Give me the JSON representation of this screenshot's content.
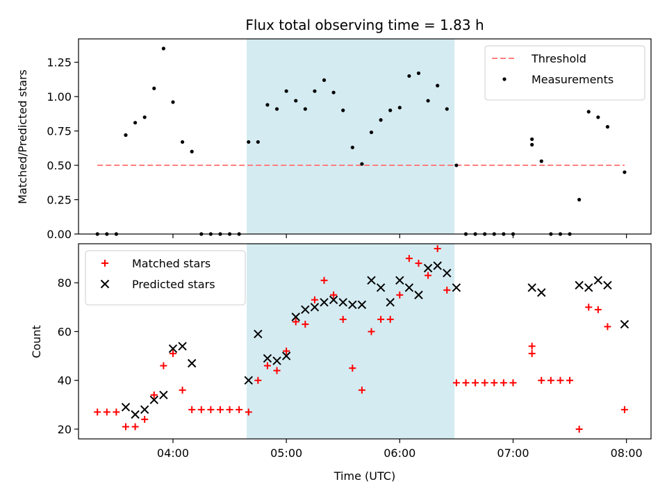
{
  "chart_data": {
    "type": "scatter",
    "title": "Flux total observing time = 1.83 h",
    "xlabel": "Time (UTC)",
    "x_unit": "hours UTC",
    "xlim": [
      "03:10",
      "08:13"
    ],
    "x_ticks": [
      "04:00",
      "05:00",
      "06:00",
      "07:00",
      "08:00"
    ],
    "shaded_interval": [
      "04:39",
      "06:29"
    ],
    "shade_color": "#d4ebf1",
    "panels": [
      {
        "ylabel": "Matched/Predicted stars",
        "ylim": [
          0,
          1.42
        ],
        "y_ticks": [
          "0.00",
          "0.25",
          "0.50",
          "0.75",
          "1.00",
          "1.25"
        ],
        "legend_position": "upper-right",
        "threshold": {
          "name": "Threshold",
          "x_range": [
            "03:20",
            "07:59"
          ],
          "value": 0.5,
          "color": "#ff7f7f"
        },
        "series": [
          {
            "name": "Measurements",
            "marker": "dot",
            "color": "#000000",
            "points": [
              [
                "03:20",
                0.0
              ],
              [
                "03:25",
                0.0
              ],
              [
                "03:30",
                0.0
              ],
              [
                "03:35",
                0.72
              ],
              [
                "03:40",
                0.81
              ],
              [
                "03:45",
                0.85
              ],
              [
                "03:50",
                1.06
              ],
              [
                "03:55",
                1.35
              ],
              [
                "04:00",
                0.96
              ],
              [
                "04:05",
                0.67
              ],
              [
                "04:10",
                0.6
              ],
              [
                "04:15",
                0.0
              ],
              [
                "04:20",
                0.0
              ],
              [
                "04:25",
                0.0
              ],
              [
                "04:30",
                0.0
              ],
              [
                "04:35",
                0.0
              ],
              [
                "04:40",
                0.67
              ],
              [
                "04:45",
                0.67
              ],
              [
                "04:50",
                0.94
              ],
              [
                "04:55",
                0.91
              ],
              [
                "05:00",
                1.04
              ],
              [
                "05:05",
                0.97
              ],
              [
                "05:10",
                0.91
              ],
              [
                "05:15",
                1.04
              ],
              [
                "05:20",
                1.12
              ],
              [
                "05:25",
                1.03
              ],
              [
                "05:30",
                0.9
              ],
              [
                "05:35",
                0.63
              ],
              [
                "05:40",
                0.51
              ],
              [
                "05:45",
                0.74
              ],
              [
                "05:50",
                0.83
              ],
              [
                "05:55",
                0.9
              ],
              [
                "06:00",
                0.92
              ],
              [
                "06:05",
                1.15
              ],
              [
                "06:10",
                1.17
              ],
              [
                "06:15",
                0.97
              ],
              [
                "06:20",
                1.08
              ],
              [
                "06:25",
                0.91
              ],
              [
                "06:30",
                0.5
              ],
              [
                "06:35",
                0.0
              ],
              [
                "06:40",
                0.0
              ],
              [
                "06:45",
                0.0
              ],
              [
                "06:50",
                0.0
              ],
              [
                "06:55",
                0.0
              ],
              [
                "07:00",
                0.0
              ],
              [
                "07:10",
                0.69
              ],
              [
                "07:10",
                0.65
              ],
              [
                "07:15",
                0.53
              ],
              [
                "07:20",
                0.0
              ],
              [
                "07:25",
                0.0
              ],
              [
                "07:30",
                0.0
              ],
              [
                "07:35",
                0.25
              ],
              [
                "07:40",
                0.89
              ],
              [
                "07:45",
                0.85
              ],
              [
                "07:50",
                0.78
              ],
              [
                "07:59",
                0.45
              ]
            ]
          }
        ]
      },
      {
        "ylabel": "Count",
        "ylim": [
          16,
          96
        ],
        "y_ticks": [
          "20",
          "40",
          "60",
          "80"
        ],
        "legend_position": "upper-left",
        "series": [
          {
            "name": "Matched stars",
            "marker": "plus",
            "color": "#ff0000",
            "points": [
              [
                "03:20",
                27
              ],
              [
                "03:25",
                27
              ],
              [
                "03:30",
                27
              ],
              [
                "03:35",
                21
              ],
              [
                "03:40",
                21
              ],
              [
                "03:45",
                24
              ],
              [
                "03:50",
                34
              ],
              [
                "03:55",
                46
              ],
              [
                "04:00",
                51
              ],
              [
                "04:05",
                36
              ],
              [
                "04:10",
                28
              ],
              [
                "04:15",
                28
              ],
              [
                "04:20",
                28
              ],
              [
                "04:25",
                28
              ],
              [
                "04:30",
                28
              ],
              [
                "04:35",
                28
              ],
              [
                "04:40",
                27
              ],
              [
                "04:45",
                40
              ],
              [
                "04:50",
                46
              ],
              [
                "04:55",
                44
              ],
              [
                "05:00",
                52
              ],
              [
                "05:05",
                64
              ],
              [
                "05:10",
                63
              ],
              [
                "05:15",
                73
              ],
              [
                "05:20",
                81
              ],
              [
                "05:25",
                75
              ],
              [
                "05:30",
                65
              ],
              [
                "05:35",
                45
              ],
              [
                "05:40",
                36
              ],
              [
                "05:45",
                60
              ],
              [
                "05:50",
                65
              ],
              [
                "05:55",
                65
              ],
              [
                "06:00",
                75
              ],
              [
                "06:05",
                90
              ],
              [
                "06:10",
                88
              ],
              [
                "06:15",
                83
              ],
              [
                "06:20",
                94
              ],
              [
                "06:25",
                77
              ],
              [
                "06:30",
                39
              ],
              [
                "06:35",
                39
              ],
              [
                "06:40",
                39
              ],
              [
                "06:45",
                39
              ],
              [
                "06:50",
                39
              ],
              [
                "06:55",
                39
              ],
              [
                "07:00",
                39
              ],
              [
                "07:10",
                54
              ],
              [
                "07:10",
                51
              ],
              [
                "07:15",
                40
              ],
              [
                "07:20",
                40
              ],
              [
                "07:25",
                40
              ],
              [
                "07:30",
                40
              ],
              [
                "07:35",
                20
              ],
              [
                "07:40",
                70
              ],
              [
                "07:45",
                69
              ],
              [
                "07:50",
                62
              ],
              [
                "07:59",
                28
              ]
            ]
          },
          {
            "name": "Predicted stars",
            "marker": "x",
            "color": "#000000",
            "points": [
              [
                "03:35",
                29
              ],
              [
                "03:40",
                26
              ],
              [
                "03:45",
                28
              ],
              [
                "03:50",
                32
              ],
              [
                "03:55",
                34
              ],
              [
                "04:00",
                53
              ],
              [
                "04:05",
                54
              ],
              [
                "04:10",
                47
              ],
              [
                "04:40",
                40
              ],
              [
                "04:45",
                59
              ],
              [
                "04:50",
                49
              ],
              [
                "04:55",
                48
              ],
              [
                "05:00",
                50
              ],
              [
                "05:05",
                66
              ],
              [
                "05:10",
                69
              ],
              [
                "05:15",
                70
              ],
              [
                "05:20",
                72
              ],
              [
                "05:25",
                73
              ],
              [
                "05:30",
                72
              ],
              [
                "05:35",
                71
              ],
              [
                "05:40",
                71
              ],
              [
                "05:45",
                81
              ],
              [
                "05:50",
                78
              ],
              [
                "05:55",
                72
              ],
              [
                "06:00",
                81
              ],
              [
                "06:05",
                78
              ],
              [
                "06:10",
                75
              ],
              [
                "06:15",
                86
              ],
              [
                "06:20",
                87
              ],
              [
                "06:25",
                84
              ],
              [
                "06:30",
                78
              ],
              [
                "07:10",
                78
              ],
              [
                "07:15",
                76
              ],
              [
                "07:35",
                79
              ],
              [
                "07:40",
                78
              ],
              [
                "07:45",
                81
              ],
              [
                "07:50",
                79
              ],
              [
                "07:59",
                63
              ]
            ]
          }
        ]
      }
    ]
  }
}
